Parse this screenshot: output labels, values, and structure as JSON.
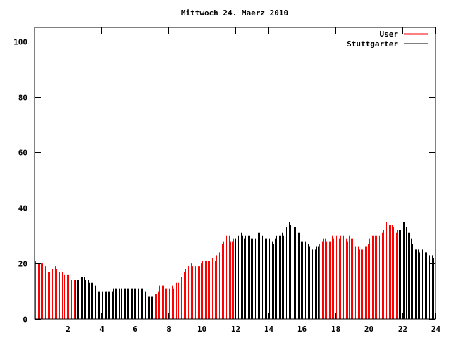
{
  "chart_data": {
    "type": "bar",
    "title": "Mittwoch 24. Maerz 2010",
    "xlabel": "",
    "ylabel": "",
    "xlim": [
      0,
      24
    ],
    "ylim": [
      0,
      105
    ],
    "x_ticks": [
      "2",
      "4",
      "6",
      "8",
      "10",
      "12",
      "14",
      "16",
      "18",
      "20",
      "22",
      "24"
    ],
    "y_ticks": [
      "0",
      "20",
      "40",
      "60",
      "80",
      "100"
    ],
    "grid": false,
    "legend_position": "top-right",
    "legend": [
      {
        "name": "User",
        "color": "#ff0000"
      },
      {
        "name": "Stuttgarter",
        "color": "#000000"
      }
    ],
    "series_segments": [
      {
        "series": "User",
        "from_hour": 0,
        "to_hour": 2.4
      },
      {
        "series": "Stuttgarter",
        "from_hour": 2.4,
        "to_hour": 7.2
      },
      {
        "series": "User",
        "from_hour": 7.2,
        "to_hour": 12.0
      },
      {
        "series": "Stuttgarter",
        "from_hour": 12.0,
        "to_hour": 17.0
      },
      {
        "series": "User",
        "from_hour": 17.0,
        "to_hour": 21.8
      },
      {
        "series": "Stuttgarter",
        "from_hour": 21.8,
        "to_hour": 24
      }
    ],
    "values": [
      21,
      21,
      20,
      20,
      20,
      20,
      20,
      19,
      19,
      17,
      17,
      18,
      18,
      17,
      19,
      18,
      18,
      17,
      17,
      17,
      16,
      16,
      16,
      16,
      14,
      14,
      14,
      14,
      14,
      14,
      14,
      14,
      15,
      15,
      15,
      14,
      14,
      14,
      13,
      13,
      13,
      12,
      12,
      11,
      10,
      10,
      10,
      10,
      10,
      10,
      10,
      10,
      10,
      10,
      10,
      11,
      11,
      11,
      11,
      11,
      11,
      11,
      11,
      11,
      11,
      11,
      11,
      11,
      11,
      11,
      11,
      11,
      11,
      11,
      11,
      11,
      10,
      10,
      9,
      8,
      8,
      8,
      8,
      9,
      9,
      9,
      10,
      12,
      12,
      12,
      12,
      11,
      11,
      11,
      11,
      11,
      12,
      11,
      13,
      13,
      13,
      15,
      15,
      15,
      17,
      18,
      18,
      19,
      19,
      20,
      19,
      19,
      19,
      19,
      19,
      19,
      20,
      21,
      21,
      21,
      21,
      21,
      21,
      21,
      22,
      21,
      21,
      23,
      24,
      24,
      25,
      27,
      28,
      29,
      30,
      30,
      30,
      28,
      28,
      29,
      29,
      28,
      30,
      31,
      31,
      30,
      29,
      30,
      30,
      30,
      30,
      29,
      29,
      29,
      29,
      30,
      31,
      31,
      30,
      30,
      29,
      29,
      29,
      29,
      29,
      29,
      28,
      27,
      29,
      30,
      32,
      30,
      30,
      31,
      30,
      33,
      33,
      35,
      35,
      34,
      33,
      33,
      33,
      32,
      31,
      31,
      28,
      28,
      28,
      28,
      29,
      27,
      26,
      26,
      25,
      25,
      25,
      26,
      26,
      27,
      25,
      28,
      29,
      29,
      28,
      28,
      28,
      28,
      30,
      29,
      30,
      30,
      30,
      29,
      30,
      28,
      30,
      29,
      29,
      28,
      30,
      29,
      29,
      28,
      26,
      26,
      26,
      25,
      25,
      25,
      26,
      26,
      26,
      27,
      29,
      30,
      30,
      30,
      30,
      30,
      31,
      30,
      30,
      31,
      32,
      33,
      35,
      34,
      34,
      34,
      34,
      33,
      31,
      31,
      32,
      32,
      32,
      35,
      35,
      35,
      33,
      31,
      31,
      29,
      27,
      28,
      25,
      25,
      25,
      24,
      25,
      25,
      25,
      24,
      24,
      25,
      23,
      22,
      23,
      22,
      22
    ]
  }
}
